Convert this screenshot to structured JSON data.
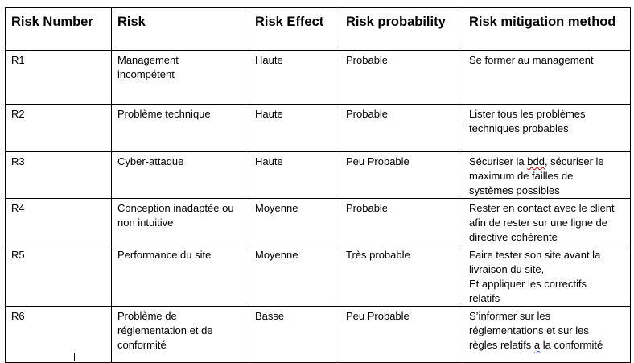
{
  "table": {
    "headers": [
      "Risk Number",
      "Risk",
      "Risk Effect",
      "Risk probability",
      "Risk mitigation method"
    ],
    "rows": [
      {
        "number": "R1",
        "risk": "Management\nincompétent",
        "effect": "Haute",
        "probability": "Probable",
        "mitigation": {
          "pre": "Se former au management",
          "mark": "",
          "post": ""
        }
      },
      {
        "number": "R2",
        "risk": "Problème technique",
        "effect": "Haute",
        "probability": "Probable",
        "mitigation": {
          "pre": "Lister tous les problèmes\ntechniques probables",
          "mark": "",
          "post": ""
        }
      },
      {
        "number": "R3",
        "risk": "Cyber-attaque",
        "effect": "Haute",
        "probability": "Peu Probable",
        "mitigation": {
          "pre": "Sécuriser la ",
          "mark": "bdd",
          "post": ", sécuriser le\nmaximum de failles de\nsystèmes possibles"
        }
      },
      {
        "number": "R4",
        "risk": "Conception inadaptée ou\nnon intuitive",
        "effect": "Moyenne",
        "probability": "Probable",
        "mitigation": {
          "pre": "Rester en contact avec le client\nafin de rester sur une ligne de\ndirective cohérente",
          "mark": "",
          "post": ""
        }
      },
      {
        "number": "R5",
        "risk": "Performance du site",
        "effect": "Moyenne",
        "probability": "Très probable",
        "mitigation": {
          "pre": "Faire tester son site avant la\nlivraison du site,\nEt appliquer les correctifs\nrelatifs",
          "mark": "",
          "post": ""
        }
      },
      {
        "number": "R6",
        "risk": "Problème de\nréglementation et de\nconformité",
        "effect": "Basse",
        "probability": "Peu Probable",
        "mitigation": {
          "pre": "S’informer sur les\nréglementations et sur les\nrègles relatifs ",
          "mark": "a",
          "post": " la conformité"
        }
      }
    ]
  }
}
